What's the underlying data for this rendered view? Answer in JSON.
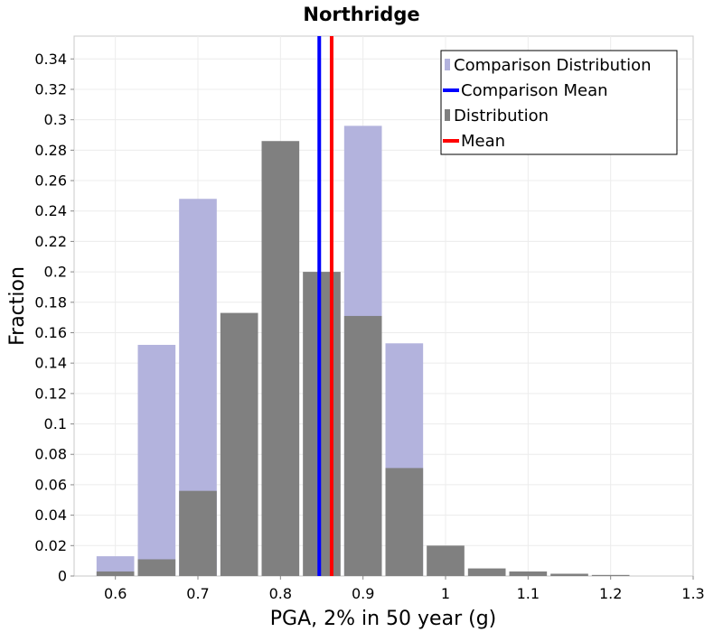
{
  "chart_data": {
    "type": "bar",
    "title": "Northridge",
    "xlabel": "PGA, 2% in 50 year (g)",
    "ylabel": "Fraction",
    "xlim": [
      0.55,
      1.3
    ],
    "ylim": [
      0,
      0.355
    ],
    "x_ticks": [
      "0.6",
      "0.7",
      "0.8",
      "0.9",
      "1",
      "1.1",
      "1.2",
      "1.3"
    ],
    "y_ticks": [
      "0",
      "0.02",
      "0.04",
      "0.06",
      "0.08",
      "0.1",
      "0.12",
      "0.14",
      "0.16",
      "0.18",
      "0.2",
      "0.22",
      "0.24",
      "0.26",
      "0.28",
      "0.3",
      "0.32",
      "0.34"
    ],
    "bin_width": 0.05,
    "grid": true,
    "legend_position": "top-right",
    "series": [
      {
        "name": "Comparison Distribution",
        "color": "#b3b3dd",
        "bins": [
          {
            "x": 0.6,
            "value": 0.013
          },
          {
            "x": 0.65,
            "value": 0.152
          },
          {
            "x": 0.7,
            "value": 0.248
          },
          {
            "x": 0.75,
            "value": 0.0
          },
          {
            "x": 0.8,
            "value": 0.0
          },
          {
            "x": 0.85,
            "value": 0.0
          },
          {
            "x": 0.9,
            "value": 0.296
          },
          {
            "x": 0.95,
            "value": 0.153
          }
        ]
      },
      {
        "name": "Distribution",
        "color": "#808080",
        "bins": [
          {
            "x": 0.6,
            "value": 0.003
          },
          {
            "x": 0.65,
            "value": 0.011
          },
          {
            "x": 0.7,
            "value": 0.056
          },
          {
            "x": 0.75,
            "value": 0.173
          },
          {
            "x": 0.8,
            "value": 0.286
          },
          {
            "x": 0.85,
            "value": 0.2
          },
          {
            "x": 0.9,
            "value": 0.171
          },
          {
            "x": 0.95,
            "value": 0.071
          },
          {
            "x": 1.0,
            "value": 0.02
          },
          {
            "x": 1.05,
            "value": 0.005
          },
          {
            "x": 1.1,
            "value": 0.003
          },
          {
            "x": 1.15,
            "value": 0.0015
          },
          {
            "x": 1.2,
            "value": 0.0007
          }
        ]
      }
    ],
    "lines": [
      {
        "name": "Comparison Mean",
        "x": 0.847,
        "color": "#0000ff"
      },
      {
        "name": "Mean",
        "x": 0.862,
        "color": "#ff0000"
      }
    ],
    "legend": [
      {
        "label": "Comparison Distribution",
        "kind": "bar",
        "color": "#b3b3dd"
      },
      {
        "label": "Comparison Mean",
        "kind": "line",
        "color": "#0000ff"
      },
      {
        "label": "Distribution",
        "kind": "bar",
        "color": "#808080"
      },
      {
        "label": "Mean",
        "kind": "line",
        "color": "#ff0000"
      }
    ]
  }
}
